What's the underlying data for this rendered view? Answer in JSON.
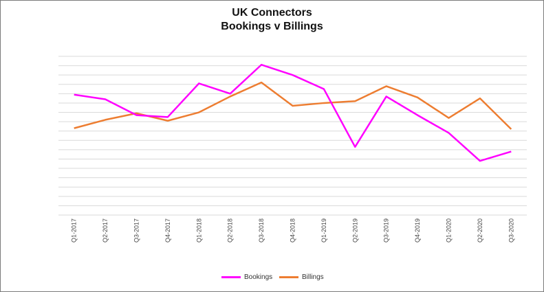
{
  "chart_data": {
    "type": "line",
    "title": "UK Connectors",
    "subtitle": "Bookings v Billings",
    "xlabel": "",
    "ylabel": "",
    "grid": true,
    "legend_position": "bottom",
    "categories": [
      "Q1-2017",
      "Q2-2017",
      "Q3-2017",
      "Q4-2017",
      "Q1-2018",
      "Q2-2018",
      "Q3-2018",
      "Q4-2018",
      "Q1-2019",
      "Q2-2019",
      "Q3-2019",
      "Q4-2019",
      "Q1-2020",
      "Q2-2020",
      "Q3-2020"
    ],
    "ylim": [
      0,
      17
    ],
    "series": [
      {
        "name": "Bookings",
        "color": "#ff00ff",
        "values": [
          12.9,
          12.4,
          10.7,
          10.5,
          14.1,
          13.0,
          16.1,
          15.0,
          13.5,
          7.3,
          12.7,
          10.7,
          8.8,
          5.8,
          6.8
        ]
      },
      {
        "name": "Billings",
        "color": "#ed7d31",
        "values": [
          9.3,
          10.2,
          10.9,
          10.1,
          11.0,
          12.7,
          14.2,
          11.7,
          12.0,
          12.2,
          13.8,
          12.6,
          10.4,
          12.5,
          9.2
        ]
      }
    ]
  }
}
